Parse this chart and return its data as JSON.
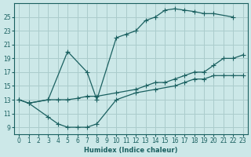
{
  "xlabel": "Humidex (Indice chaleur)",
  "bg_color": "#cce8e8",
  "grid_color": "#aacccc",
  "line_color": "#1a6060",
  "xlim": [
    -0.5,
    23.5
  ],
  "ylim": [
    8,
    27
  ],
  "xticks": [
    0,
    1,
    2,
    3,
    4,
    5,
    6,
    7,
    8,
    9,
    10,
    11,
    12,
    13,
    14,
    15,
    16,
    17,
    18,
    19,
    20,
    21,
    22,
    23
  ],
  "yticks": [
    9,
    11,
    13,
    15,
    17,
    19,
    21,
    23,
    25
  ],
  "line1_x": [
    0,
    1,
    3,
    5,
    7,
    8,
    10,
    11,
    12,
    13,
    14,
    15,
    16,
    17,
    18,
    19,
    20,
    22
  ],
  "line1_y": [
    13,
    12.5,
    13,
    20,
    17,
    13,
    22,
    22.5,
    23,
    24.5,
    25,
    26,
    26.2,
    26,
    25.8,
    25.5,
    25.5,
    25
  ],
  "line2_x": [
    0,
    1,
    3,
    4,
    5,
    6,
    7,
    8,
    10,
    12,
    13,
    14,
    15,
    16,
    17,
    18,
    19,
    20,
    21,
    22,
    23
  ],
  "line2_y": [
    13,
    12.5,
    13,
    13,
    13,
    13.2,
    13.5,
    13.5,
    14,
    14.5,
    15,
    15.5,
    15.5,
    16,
    16.5,
    17,
    17,
    18,
    19,
    19,
    19.5
  ],
  "line3_x": [
    1,
    3,
    4,
    5,
    6,
    7,
    8,
    10,
    12,
    14,
    16,
    17,
    18,
    19,
    20,
    21,
    22,
    23
  ],
  "line3_y": [
    12.5,
    10.5,
    9.5,
    9,
    9,
    9,
    9.5,
    13,
    14,
    14.5,
    15,
    15.5,
    16,
    16,
    16.5,
    16.5,
    16.5,
    16.5
  ]
}
